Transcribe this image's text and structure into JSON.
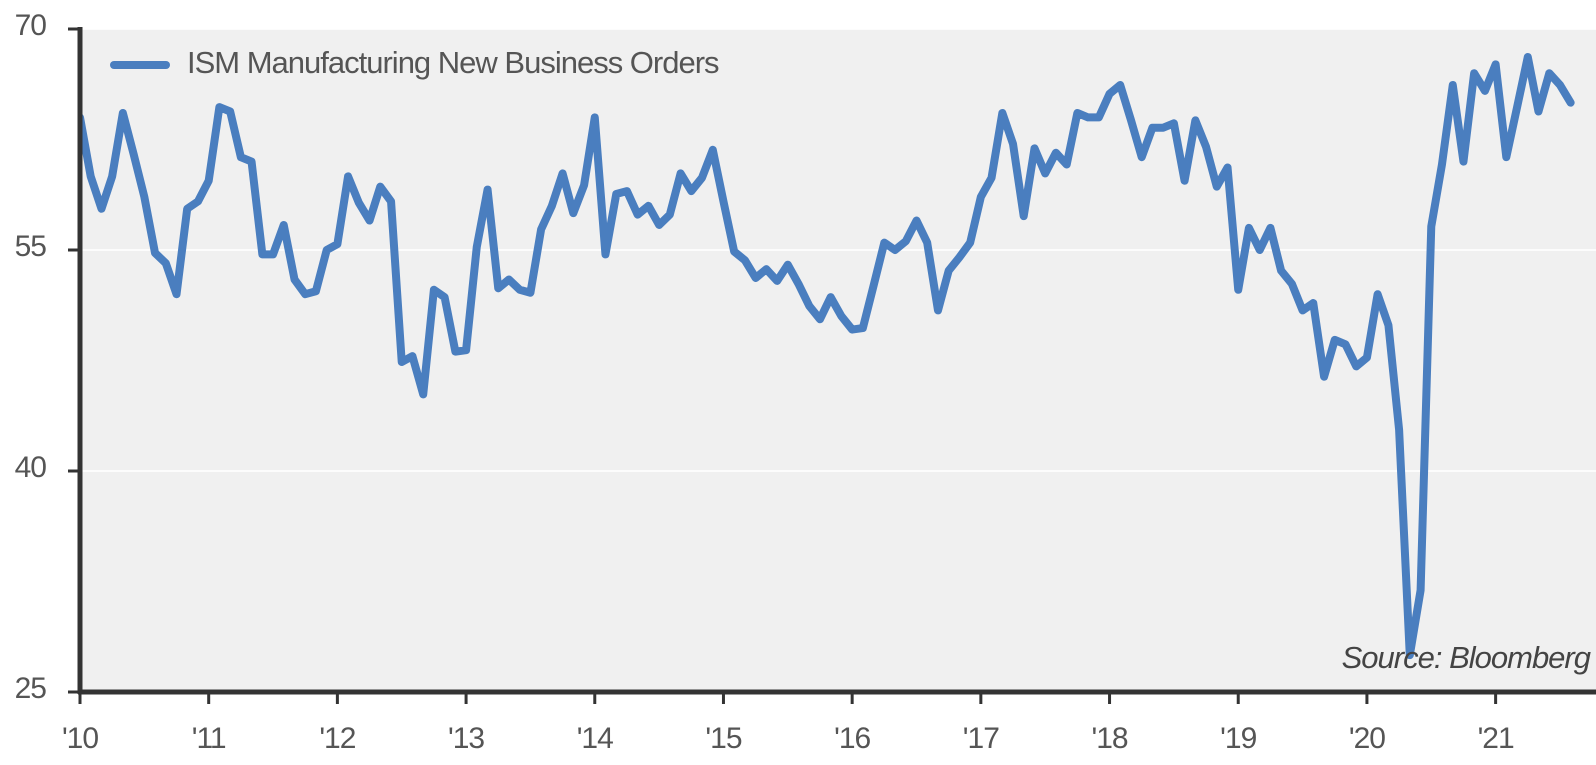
{
  "chart_data": {
    "type": "line",
    "x": [
      2010,
      2010.083,
      2010.167,
      2010.25,
      2010.333,
      2010.417,
      2010.5,
      2010.583,
      2010.667,
      2010.75,
      2010.833,
      2010.917,
      2011,
      2011.083,
      2011.167,
      2011.25,
      2011.333,
      2011.417,
      2011.5,
      2011.583,
      2011.667,
      2011.75,
      2011.833,
      2011.917,
      2012,
      2012.083,
      2012.167,
      2012.25,
      2012.333,
      2012.417,
      2012.5,
      2012.583,
      2012.667,
      2012.75,
      2012.833,
      2012.917,
      2013,
      2013.083,
      2013.167,
      2013.25,
      2013.333,
      2013.417,
      2013.5,
      2013.583,
      2013.667,
      2013.75,
      2013.833,
      2013.917,
      2014,
      2014.083,
      2014.167,
      2014.25,
      2014.333,
      2014.417,
      2014.5,
      2014.583,
      2014.667,
      2014.75,
      2014.833,
      2014.917,
      2015,
      2015.083,
      2015.167,
      2015.25,
      2015.333,
      2015.417,
      2015.5,
      2015.583,
      2015.667,
      2015.75,
      2015.833,
      2015.917,
      2016,
      2016.083,
      2016.167,
      2016.25,
      2016.333,
      2016.417,
      2016.5,
      2016.583,
      2016.667,
      2016.75,
      2016.833,
      2016.917,
      2017,
      2017.083,
      2017.167,
      2017.25,
      2017.333,
      2017.417,
      2017.5,
      2017.583,
      2017.667,
      2017.75,
      2017.833,
      2017.917,
      2018,
      2018.083,
      2018.167,
      2018.25,
      2018.333,
      2018.417,
      2018.5,
      2018.583,
      2018.667,
      2018.75,
      2018.833,
      2018.917,
      2019,
      2019.083,
      2019.167,
      2019.25,
      2019.333,
      2019.417,
      2019.5,
      2019.583,
      2019.667,
      2019.75,
      2019.833,
      2019.917,
      2020,
      2020.083,
      2020.167,
      2020.25,
      2020.333,
      2020.417,
      2020.5,
      2020.583,
      2020.667,
      2020.75,
      2020.833,
      2020.917,
      2021,
      2021.083,
      2021.167,
      2021.25,
      2021.333,
      2021.417,
      2021.5,
      2021.583
    ],
    "series": [
      {
        "name": "ISM Manufacturing New Business Orders",
        "color": "#4a7ebf",
        "values": [
          64,
          60,
          57.8,
          60,
          64.3,
          61.5,
          58.6,
          54.8,
          54.1,
          52,
          57.8,
          58.3,
          59.7,
          64.7,
          64.4,
          61.3,
          61,
          54.7,
          54.7,
          56.7,
          53,
          52,
          52.2,
          55,
          55.4,
          60,
          58.2,
          57,
          59.3,
          58.3,
          47.4,
          47.8,
          45.2,
          52.3,
          51.8,
          48.1,
          48.2,
          55.2,
          59.1,
          52.4,
          53,
          52.3,
          52.1,
          56.4,
          58,
          60.2,
          57.5,
          59.4,
          64,
          54.7,
          58.8,
          59,
          57.4,
          58,
          56.7,
          57.4,
          60.2,
          59,
          59.9,
          61.8,
          58.3,
          54.9,
          54.3,
          53.1,
          53.7,
          52.9,
          54,
          52.7,
          51.2,
          50.3,
          51.8,
          50.5,
          49.6,
          49.7,
          52.6,
          55.5,
          55,
          55.6,
          57,
          55.5,
          50.9,
          53.6,
          54.5,
          55.5,
          58.6,
          59.9,
          64.3,
          62.2,
          57.3,
          61.9,
          60.2,
          61.6,
          60.8,
          64.3,
          64,
          64,
          65.6,
          66.2,
          63.8,
          61.3,
          63.3,
          63.3,
          63.6,
          59.7,
          63.8,
          62,
          59.3,
          60.6,
          52.3,
          56.5,
          55,
          56.5,
          53.6,
          52.7,
          50.9,
          51.4,
          46.4,
          48.9,
          48.6,
          47.1,
          47.7,
          52,
          49.9,
          42.8,
          27.5,
          31.9,
          56.6,
          60.8,
          66.2,
          61,
          67,
          65.8,
          67.6,
          61.3,
          64.7,
          68.1,
          64.4,
          67,
          66.2,
          65
        ]
      }
    ],
    "xlim": [
      2010,
      2021.78
    ],
    "xticks": [
      {
        "value": 2010,
        "label": "'10"
      },
      {
        "value": 2011,
        "label": "'11"
      },
      {
        "value": 2012,
        "label": "'12"
      },
      {
        "value": 2013,
        "label": "'13"
      },
      {
        "value": 2014,
        "label": "'14"
      },
      {
        "value": 2015,
        "label": "'15"
      },
      {
        "value": 2016,
        "label": "'16"
      },
      {
        "value": 2017,
        "label": "'17"
      },
      {
        "value": 2018,
        "label": "'18"
      },
      {
        "value": 2019,
        "label": "'19"
      },
      {
        "value": 2020,
        "label": "'20"
      },
      {
        "value": 2021,
        "label": "'21"
      }
    ],
    "ylim": [
      25,
      70
    ],
    "yticks": [
      25,
      40,
      55,
      70
    ],
    "grid": true,
    "legend": "upper left",
    "annotation": "Source: Bloomberg"
  }
}
